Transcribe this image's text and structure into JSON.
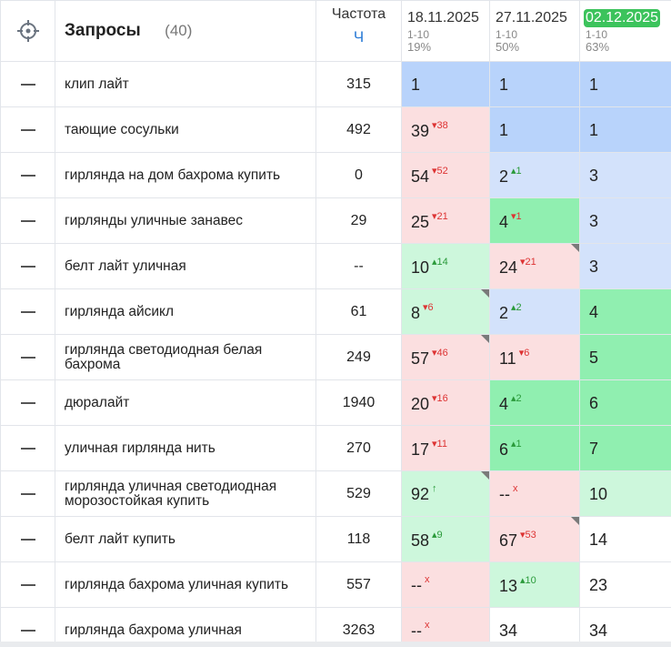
{
  "header": {
    "title": "Запросы",
    "count": "(40)",
    "freq_label": "Частота",
    "freq_unit": "Ч",
    "dates": [
      {
        "date": "18.11.2025",
        "range": "1-10",
        "pct": "19%",
        "active": false
      },
      {
        "date": "27.11.2025",
        "range": "1-10",
        "pct": "50%",
        "active": false
      },
      {
        "date": "02.12.2025",
        "range": "1-10",
        "pct": "63%",
        "active": true
      }
    ]
  },
  "icons": {
    "target": "crosshair-icon",
    "remove": "minus-icon"
  },
  "colors": {
    "blue": "#b8d3fb",
    "light_blue": "#d3e2fb",
    "pink": "#fbdfe0",
    "light_green": "#cdf7dc",
    "green": "#90efb0",
    "active_date": "#3cc35c",
    "down": "#d33333",
    "up": "#2a9a3a",
    "freq_unit": "#2b7bd6"
  },
  "rows": [
    {
      "query": "клип лайт",
      "freq": "315",
      "cells": [
        {
          "pos": "1",
          "delta": "",
          "dir": "",
          "bg": "blue",
          "corner": false
        },
        {
          "pos": "1",
          "delta": "",
          "dir": "",
          "bg": "blue",
          "corner": false
        },
        {
          "pos": "1",
          "delta": "",
          "dir": "",
          "bg": "blue",
          "corner": false
        }
      ]
    },
    {
      "query": "тающие сосульки",
      "freq": "492",
      "cells": [
        {
          "pos": "39",
          "delta": "▾38",
          "dir": "dn",
          "bg": "pink",
          "corner": false
        },
        {
          "pos": "1",
          "delta": "",
          "dir": "",
          "bg": "blue",
          "corner": false
        },
        {
          "pos": "1",
          "delta": "",
          "dir": "",
          "bg": "blue",
          "corner": false
        }
      ]
    },
    {
      "query": "гирлянда на дом бахрома купить",
      "freq": "0",
      "cells": [
        {
          "pos": "54",
          "delta": "▾52",
          "dir": "dn",
          "bg": "pink",
          "corner": false
        },
        {
          "pos": "2",
          "delta": "▴1",
          "dir": "up",
          "bg": "lblue",
          "corner": false
        },
        {
          "pos": "3",
          "delta": "",
          "dir": "",
          "bg": "lblue",
          "corner": false
        }
      ]
    },
    {
      "query": "гирлянды уличные занавес",
      "freq": "29",
      "cells": [
        {
          "pos": "25",
          "delta": "▾21",
          "dir": "dn",
          "bg": "pink",
          "corner": false
        },
        {
          "pos": "4",
          "delta": "▾1",
          "dir": "dn",
          "bg": "green",
          "corner": false
        },
        {
          "pos": "3",
          "delta": "",
          "dir": "",
          "bg": "lblue",
          "corner": false
        }
      ]
    },
    {
      "query": "белт лайт уличная",
      "freq": "--",
      "cells": [
        {
          "pos": "10",
          "delta": "▴14",
          "dir": "up",
          "bg": "lgreen",
          "corner": false
        },
        {
          "pos": "24",
          "delta": "▾21",
          "dir": "dn",
          "bg": "pink",
          "corner": true
        },
        {
          "pos": "3",
          "delta": "",
          "dir": "",
          "bg": "lblue",
          "corner": false
        }
      ]
    },
    {
      "query": "гирлянда айсикл",
      "freq": "61",
      "cells": [
        {
          "pos": "8",
          "delta": "▾6",
          "dir": "dn",
          "bg": "lgreen",
          "corner": true
        },
        {
          "pos": "2",
          "delta": "▴2",
          "dir": "up",
          "bg": "lblue",
          "corner": false
        },
        {
          "pos": "4",
          "delta": "",
          "dir": "",
          "bg": "green",
          "corner": false
        }
      ]
    },
    {
      "query": "гирлянда светодиодная белая бахрома",
      "freq": "249",
      "cells": [
        {
          "pos": "57",
          "delta": "▾46",
          "dir": "dn",
          "bg": "pink",
          "corner": true
        },
        {
          "pos": "11",
          "delta": "▾6",
          "dir": "dn",
          "bg": "pink",
          "corner": false
        },
        {
          "pos": "5",
          "delta": "",
          "dir": "",
          "bg": "green",
          "corner": false
        }
      ]
    },
    {
      "query": "дюралайт",
      "freq": "1940",
      "cells": [
        {
          "pos": "20",
          "delta": "▾16",
          "dir": "dn",
          "bg": "pink",
          "corner": false
        },
        {
          "pos": "4",
          "delta": "▴2",
          "dir": "up",
          "bg": "green",
          "corner": false
        },
        {
          "pos": "6",
          "delta": "",
          "dir": "",
          "bg": "green",
          "corner": false
        }
      ]
    },
    {
      "query": "уличная гирлянда нить",
      "freq": "270",
      "cells": [
        {
          "pos": "17",
          "delta": "▾11",
          "dir": "dn",
          "bg": "pink",
          "corner": false
        },
        {
          "pos": "6",
          "delta": "▴1",
          "dir": "up",
          "bg": "green",
          "corner": false
        },
        {
          "pos": "7",
          "delta": "",
          "dir": "",
          "bg": "green",
          "corner": false
        }
      ]
    },
    {
      "query": "гирлянда уличная светодиодная морозостойкая купить",
      "freq": "529",
      "cells": [
        {
          "pos": "92",
          "delta": "↑",
          "dir": "up",
          "bg": "lgreen",
          "corner": true
        },
        {
          "pos": "--",
          "delta": "x",
          "dir": "dn",
          "bg": "pink",
          "corner": false
        },
        {
          "pos": "10",
          "delta": "",
          "dir": "",
          "bg": "lgreen",
          "corner": false
        }
      ]
    },
    {
      "query": "белт лайт купить",
      "freq": "118",
      "cells": [
        {
          "pos": "58",
          "delta": "▴9",
          "dir": "up",
          "bg": "lgreen",
          "corner": false
        },
        {
          "pos": "67",
          "delta": "▾53",
          "dir": "dn",
          "bg": "pink",
          "corner": true
        },
        {
          "pos": "14",
          "delta": "",
          "dir": "",
          "bg": "white",
          "corner": false
        }
      ]
    },
    {
      "query": "гирлянда бахрома уличная купить",
      "freq": "557",
      "cells": [
        {
          "pos": "--",
          "delta": "x",
          "dir": "dn",
          "bg": "pink",
          "corner": false
        },
        {
          "pos": "13",
          "delta": "▴10",
          "dir": "up",
          "bg": "lgreen",
          "corner": false
        },
        {
          "pos": "23",
          "delta": "",
          "dir": "",
          "bg": "white",
          "corner": false
        }
      ]
    },
    {
      "query": "гирлянда бахрома уличная",
      "freq": "3263",
      "cells": [
        {
          "pos": "--",
          "delta": "x",
          "dir": "dn",
          "bg": "pink",
          "corner": false
        },
        {
          "pos": "34",
          "delta": "",
          "dir": "",
          "bg": "white",
          "corner": false
        },
        {
          "pos": "34",
          "delta": "",
          "dir": "",
          "bg": "white",
          "corner": false
        }
      ]
    }
  ]
}
